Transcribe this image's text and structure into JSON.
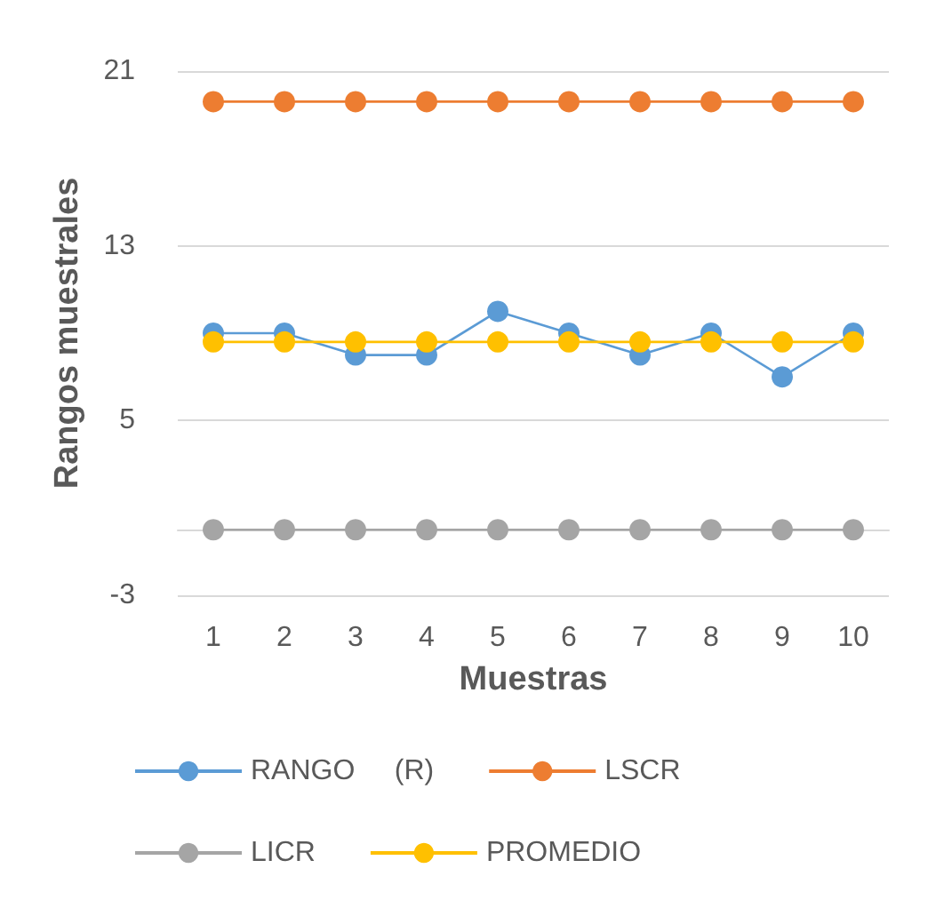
{
  "chart_data": {
    "type": "line",
    "xlabel": "Muestras",
    "ylabel": "Rangos muestrales",
    "categories": [
      "1",
      "2",
      "3",
      "4",
      "5",
      "6",
      "7",
      "8",
      "9",
      "10"
    ],
    "series": [
      {
        "name": "RANGO     (R)",
        "color": "#5b9bd5",
        "values": [
          9,
          9,
          8,
          8,
          10,
          9,
          8,
          9,
          7,
          9
        ]
      },
      {
        "name": "LSCR",
        "color": "#ed7d31",
        "values": [
          19.6,
          19.6,
          19.6,
          19.6,
          19.6,
          19.6,
          19.6,
          19.6,
          19.6,
          19.6
        ]
      },
      {
        "name": "LICR",
        "color": "#a5a5a5",
        "values": [
          0,
          0,
          0,
          0,
          0,
          0,
          0,
          0,
          0,
          0
        ]
      },
      {
        "name": "PROMEDIO",
        "color": "#ffc000",
        "values": [
          8.6,
          8.6,
          8.6,
          8.6,
          8.6,
          8.6,
          8.6,
          8.6,
          8.6,
          8.6
        ]
      }
    ],
    "ylim": [
      -3,
      21
    ],
    "yticks": [
      -3,
      5,
      13,
      21
    ],
    "grid": "y",
    "legend": "bottom",
    "marker": "circle",
    "line_style": "solid"
  }
}
